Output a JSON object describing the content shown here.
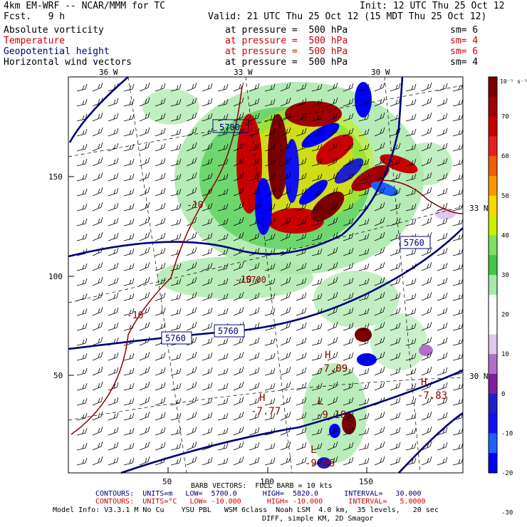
{
  "header": {
    "model": "4km EM-WRF -- NCAR/MMM for TC",
    "init": "Init: 12 UTC Thu 25 Oct 12",
    "fcst": "Fcst.   9 h",
    "valid": "Valid: 21 UTC Thu 25 Oct 12 (15 MDT Thu 25 Oct 12)"
  },
  "fields": [
    {
      "name": "Absolute vorticity",
      "level": "at pressure =  500 hPa",
      "sm": "sm= 6",
      "color": "#000000"
    },
    {
      "name": "Temperature",
      "level": "at pressure =  500 hPa",
      "sm": "sm= 4",
      "color": "#cc0000"
    },
    {
      "name": "Geopotential height",
      "level": "at pressure =  500 hPa",
      "sm": "sm= 6",
      "color": "#00007a"
    },
    {
      "name": "Horizontal wind vectors",
      "level": "at pressure =  500 hPa",
      "sm": "sm= 4",
      "color": "#000000"
    }
  ],
  "map": {
    "lon_labels": [
      "36 W",
      "33 W",
      "30 W"
    ],
    "lat_labels": [
      "33 N",
      "30 N"
    ],
    "x_ticks": [
      "50",
      "100",
      "150"
    ],
    "y_ticks": [
      "150",
      "100",
      "50"
    ],
    "height_labels": [
      "5700",
      "5760",
      "5760",
      "5760",
      "5700"
    ],
    "temp_labels": [
      "-10",
      "-10",
      "-10"
    ],
    "extrema": [
      {
        "mark": "H",
        "value": "-7.09"
      },
      {
        "mark": "H",
        "value": "-7.77"
      },
      {
        "mark": "H",
        "value": "-7.83"
      },
      {
        "mark": "L",
        "value": "-9.18"
      },
      {
        "mark": "L",
        "value": "-9.86"
      }
    ]
  },
  "colorbar": {
    "units": "10⁻⁵ s⁻¹",
    "ticks": [
      "70",
      "60",
      "50",
      "40",
      "30",
      "20",
      "10",
      "0",
      "-10",
      "-20",
      "-30"
    ],
    "colors": [
      "#7a0000",
      "#a00000",
      "#c80000",
      "#e62020",
      "#f06000",
      "#f89800",
      "#f8d800",
      "#c8f000",
      "#80e060",
      "#40c840",
      "#a8e8a8",
      "#ffffff",
      "#ffffff",
      "#e0c8e8",
      "#b070c8",
      "#8020a0",
      "#2020c8",
      "#1010f0",
      "#2060ff",
      "#0000ff"
    ]
  },
  "footer": {
    "barb": "BARB VECTORS:  FULL BARB = 10 kts",
    "contours1": "CONTOURS:  UNITS=m   LOW=  5700.0      HIGH=  5820.0      INTERVAL=   30.000",
    "contours2": "CONTOURS:  UNITS=°C   LOW= -10.000      HIGH= -10.000      INTERVAL=   5.0000",
    "model_info": "Model Info: V3.3.1 M No Cu    YSU PBL   WSM 6class  Noah LSM  4.0 km,  35 levels,   20 sec",
    "diff": "DIFF, simple KM, 2D Smagor"
  }
}
